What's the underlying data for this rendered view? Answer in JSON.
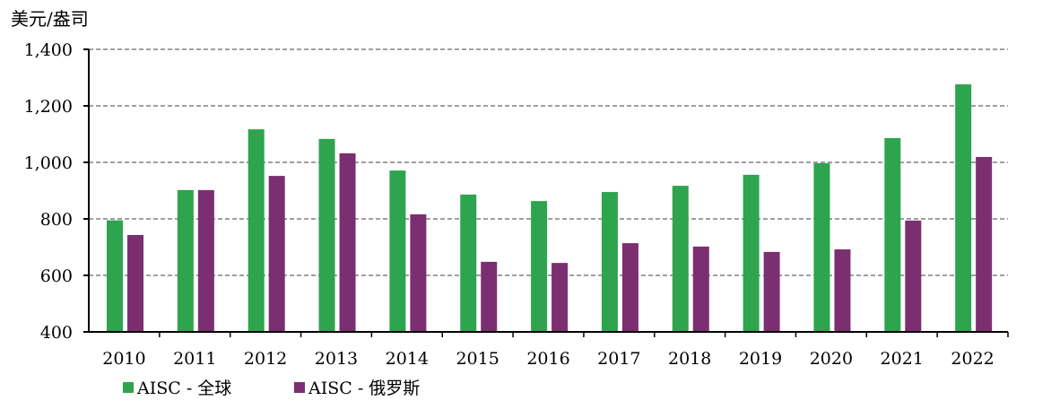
{
  "chart_data": {
    "type": "bar",
    "ylabel": "美元/盎司",
    "ylim": [
      400,
      1400
    ],
    "yticks": [
      400,
      600,
      800,
      1000,
      1200,
      1400
    ],
    "ytick_labels": [
      "400",
      "600",
      "800",
      "1,000",
      "1,200",
      "1,400"
    ],
    "grid": true,
    "legend_position": "bottom-left",
    "categories": [
      "2010",
      "2011",
      "2012",
      "2013",
      "2014",
      "2015",
      "2016",
      "2017",
      "2018",
      "2019",
      "2020",
      "2021",
      "2022"
    ],
    "series": [
      {
        "name": "AISC - 全球",
        "color": "#2ea44f",
        "values": [
          795,
          902,
          1117,
          1083,
          971,
          886,
          863,
          895,
          917,
          956,
          997,
          1086,
          1276
        ]
      },
      {
        "name": "AISC - 俄罗斯",
        "color": "#7b2f70",
        "values": [
          743,
          902,
          952,
          1032,
          816,
          648,
          644,
          714,
          702,
          683,
          692,
          794,
          1019
        ]
      }
    ]
  }
}
